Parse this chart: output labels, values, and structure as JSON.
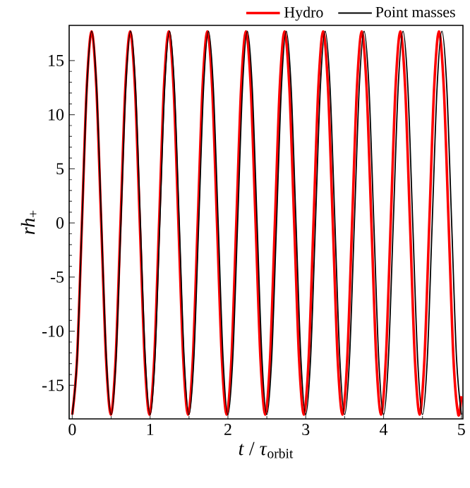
{
  "chart_data": {
    "type": "line",
    "xlabel": "*t* / *τ*$_{orbit}$",
    "ylabel": "*rh*$_{+}$",
    "xlim": [
      -0.04,
      5.02
    ],
    "ylim": [
      -18.1,
      18.25
    ],
    "xticks": [
      0,
      1,
      2,
      3,
      4,
      5
    ],
    "yticks": [
      -15,
      -10,
      -5,
      0,
      5,
      10,
      15
    ],
    "legend": "top right",
    "series": [
      {
        "name": "Hydro",
        "color": "#ff0000",
        "x": [
          0,
          0.062,
          0.124,
          0.186,
          0.248,
          0.31,
          0.372,
          0.434,
          0.496,
          0.558,
          0.62,
          0.682,
          0.744,
          0.806,
          0.868,
          0.93,
          0.992,
          1.054,
          1.116,
          1.178,
          1.24,
          1.302,
          1.364,
          1.426,
          1.488,
          1.55,
          1.612,
          1.674,
          1.736,
          1.798,
          1.86,
          1.922,
          1.984,
          2.046,
          2.108,
          2.17,
          2.232,
          2.294,
          2.356,
          2.418,
          2.48,
          2.542,
          2.604,
          2.666,
          2.728,
          2.79,
          2.852,
          2.914,
          2.976,
          3.038,
          3.1,
          3.162,
          3.224,
          3.286,
          3.348,
          3.41,
          3.472,
          3.534,
          3.596,
          3.658,
          3.72,
          3.782,
          3.844,
          3.906,
          3.968,
          4.03,
          4.092,
          4.154,
          4.216,
          4.278,
          4.34,
          4.402,
          4.464,
          4.526,
          4.588,
          4.65,
          4.712,
          4.774,
          4.836,
          4.898,
          4.96,
          5.0
        ],
        "values": [
          -17.7,
          -12.5,
          0,
          12.5,
          17.7,
          12.5,
          0,
          -12.5,
          -17.7,
          -12.5,
          0,
          12.5,
          17.7,
          12.5,
          0,
          -12.5,
          -17.7,
          -12.5,
          0,
          12.5,
          17.7,
          12.5,
          0,
          -12.5,
          -17.7,
          -12.5,
          0,
          12.5,
          17.7,
          12.5,
          0,
          -12.5,
          -17.7,
          -12.5,
          0,
          12.5,
          17.7,
          12.5,
          0,
          -12.5,
          -17.7,
          -12.5,
          0,
          12.5,
          17.7,
          12.5,
          0,
          -12.5,
          -17.7,
          -12.5,
          0,
          12.5,
          17.7,
          12.5,
          0,
          -12.5,
          -17.7,
          -12.5,
          0,
          12.5,
          17.7,
          12.5,
          0,
          -12.5,
          -17.7,
          -12.5,
          0,
          12.5,
          17.7,
          12.5,
          0,
          -12.5,
          -17.7,
          -12.5,
          0,
          12.5,
          17.7,
          12.5,
          0,
          -12.5,
          -17.7,
          -16
        ]
      },
      {
        "name": "Point masses",
        "color": "#000000",
        "x": [
          0,
          0.0625,
          0.125,
          0.1875,
          0.25,
          0.3125,
          0.375,
          0.4375,
          0.5,
          0.5625,
          0.625,
          0.6875,
          0.75,
          0.8125,
          0.875,
          0.9375,
          1.0,
          1.0625,
          1.125,
          1.1875,
          1.25,
          1.3125,
          1.375,
          1.4375,
          1.5,
          1.5625,
          1.625,
          1.6875,
          1.75,
          1.8125,
          1.875,
          1.9375,
          2.0,
          2.0625,
          2.125,
          2.1875,
          2.25,
          2.3125,
          2.375,
          2.4375,
          2.5,
          2.5625,
          2.625,
          2.6875,
          2.75,
          2.8125,
          2.875,
          2.9375,
          3.0,
          3.0625,
          3.125,
          3.1875,
          3.25,
          3.3125,
          3.375,
          3.4375,
          3.5,
          3.5625,
          3.625,
          3.6875,
          3.75,
          3.8125,
          3.875,
          3.9375,
          4.0,
          4.0625,
          4.125,
          4.1875,
          4.25,
          4.3125,
          4.375,
          4.4375,
          4.5,
          4.5625,
          4.625,
          4.6875,
          4.75,
          4.8125,
          4.875,
          4.9375,
          5.0
        ],
        "values": [
          -17.7,
          -12.5,
          0,
          12.5,
          17.7,
          12.5,
          0,
          -12.5,
          -17.7,
          -12.5,
          0,
          12.5,
          17.7,
          12.5,
          0,
          -12.5,
          -17.7,
          -12.5,
          0,
          12.5,
          17.7,
          12.5,
          0,
          -12.5,
          -17.7,
          -12.5,
          0,
          12.5,
          17.7,
          12.5,
          0,
          -12.5,
          -17.7,
          -12.5,
          0,
          12.5,
          17.7,
          12.5,
          0,
          -12.5,
          -17.7,
          -12.5,
          0,
          12.5,
          17.7,
          12.5,
          0,
          -12.5,
          -17.7,
          -12.5,
          0,
          12.5,
          17.7,
          12.5,
          0,
          -12.5,
          -17.7,
          -12.5,
          0,
          12.5,
          17.7,
          12.5,
          0,
          -12.5,
          -17.7,
          -12.5,
          0,
          12.5,
          17.7,
          12.5,
          0,
          -12.5,
          -17.7,
          -12.5,
          0,
          12.5,
          17.7,
          12.5,
          0,
          -12.5,
          -17.7
        ]
      }
    ]
  }
}
